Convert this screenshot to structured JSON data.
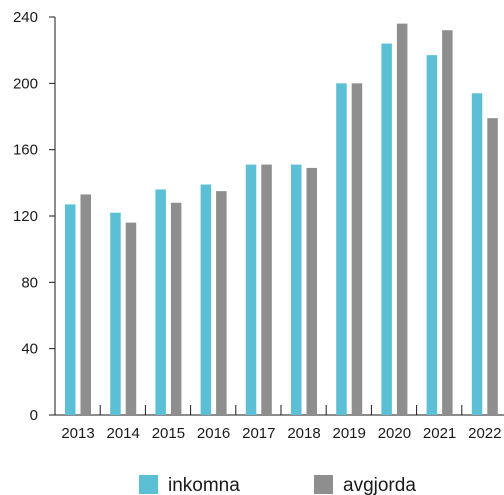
{
  "chart_data": {
    "type": "bar",
    "categories": [
      "2013",
      "2014",
      "2015",
      "2016",
      "2017",
      "2018",
      "2019",
      "2020",
      "2021",
      "2022"
    ],
    "series": [
      {
        "name": "inkomna",
        "color": "#5bc0d5",
        "values": [
          127,
          122,
          136,
          139,
          151,
          151,
          200,
          224,
          217,
          194
        ]
      },
      {
        "name": "avgjorda",
        "color": "#8e8e8e",
        "values": [
          133,
          116,
          128,
          135,
          151,
          149,
          200,
          236,
          232,
          179
        ]
      }
    ],
    "ylim": [
      0,
      240
    ],
    "yticks": [
      0,
      40,
      80,
      120,
      160,
      200,
      240
    ],
    "legend_position": "bottom",
    "grid": false
  }
}
